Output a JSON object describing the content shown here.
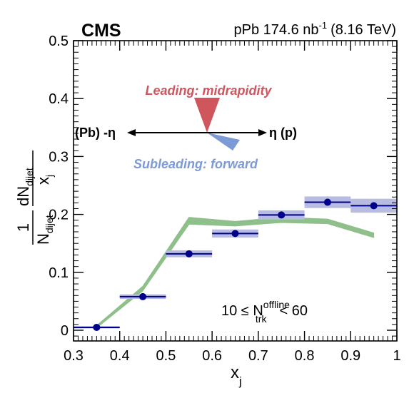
{
  "chart_data": {
    "type": "scatter",
    "experiment": "CMS",
    "subtitle_prefix": "pPb 174.6 nb",
    "subtitle_exp": "-1",
    "subtitle_suffix": "(8.16 TeV)",
    "xlabel": "x",
    "xlabel_sub": "j",
    "ylabel": {
      "one": "1",
      "n": "N",
      "n_sub": "dijet",
      "dn": "dN",
      "dn_sub": "dijet",
      "dx": "x",
      "dx_sub": "j"
    },
    "xlim": [
      0.3,
      1.0
    ],
    "ylim": [
      0.0,
      0.5
    ],
    "x_ticks": [
      "0.3",
      "0.4",
      "0.5",
      "0.6",
      "0.7",
      "0.8",
      "0.9",
      "1"
    ],
    "y_ticks": [
      "0",
      "0.1",
      "0.2",
      "0.3",
      "0.4",
      "0.5"
    ],
    "annotation": {
      "lhs": "10 ≤ N",
      "sup": "offline",
      "sub": "trk",
      "rhs": "< 60"
    },
    "inset": {
      "leading": "Leading: midrapidity",
      "subleading": "Subleading: forward",
      "left_label": "(Pb) -η",
      "right_label": "η (p)",
      "leading_color": "#d0565e",
      "subleading_color": "#7c9ad6"
    },
    "series": [
      {
        "color": "#00008b",
        "syst_color": "#b8bce0",
        "points": [
          {
            "x": 0.35,
            "y": 0.005,
            "xlow": 0.3,
            "xhigh": 0.4,
            "stat": 0.002,
            "syst": 0.002
          },
          {
            "x": 0.45,
            "y": 0.058,
            "xlow": 0.4,
            "xhigh": 0.5,
            "stat": 0.002,
            "syst": 0.004
          },
          {
            "x": 0.55,
            "y": 0.132,
            "xlow": 0.5,
            "xhigh": 0.6,
            "stat": 0.002,
            "syst": 0.006
          },
          {
            "x": 0.65,
            "y": 0.167,
            "xlow": 0.6,
            "xhigh": 0.7,
            "stat": 0.002,
            "syst": 0.007
          },
          {
            "x": 0.75,
            "y": 0.199,
            "xlow": 0.7,
            "xhigh": 0.8,
            "stat": 0.002,
            "syst": 0.008
          },
          {
            "x": 0.85,
            "y": 0.221,
            "xlow": 0.8,
            "xhigh": 0.9,
            "stat": 0.002,
            "syst": 0.01
          },
          {
            "x": 0.95,
            "y": 0.215,
            "xlow": 0.9,
            "xhigh": 1.0,
            "stat": 0.002,
            "syst": 0.012
          }
        ]
      },
      {
        "color": "#8fbf8a",
        "band": [
          {
            "x": 0.35,
            "low": 0.004,
            "high": 0.008
          },
          {
            "x": 0.45,
            "low": 0.068,
            "high": 0.076
          },
          {
            "x": 0.55,
            "low": 0.183,
            "high": 0.195
          },
          {
            "x": 0.65,
            "low": 0.18,
            "high": 0.188
          },
          {
            "x": 0.75,
            "low": 0.186,
            "high": 0.195
          },
          {
            "x": 0.85,
            "low": 0.184,
            "high": 0.192
          },
          {
            "x": 0.95,
            "low": 0.16,
            "high": 0.168
          }
        ]
      }
    ]
  }
}
